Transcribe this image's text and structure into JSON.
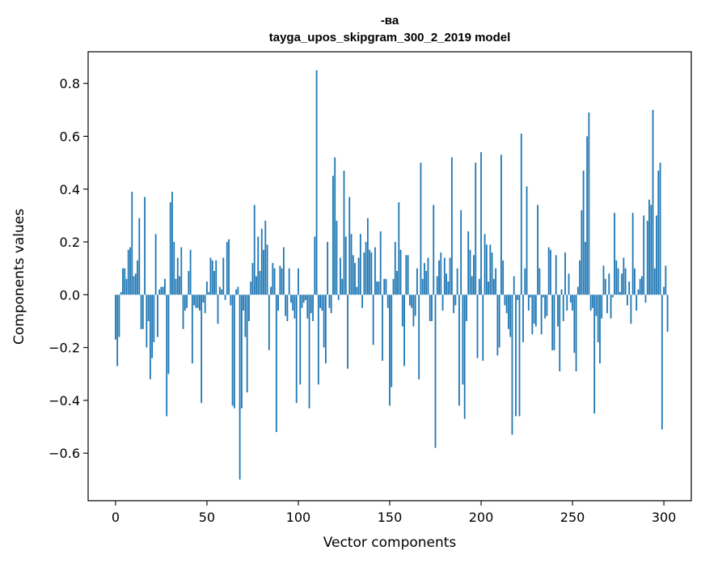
{
  "chart_data": {
    "type": "bar",
    "title_line1": "-ва",
    "title_line2": "tayga_upos_skipgram_300_2_2019 model",
    "xlabel": "Vector components",
    "ylabel": "Components values",
    "xlim": [
      -15,
      315
    ],
    "ylim": [
      -0.78,
      0.92
    ],
    "xticks": [
      0,
      50,
      100,
      150,
      200,
      250,
      300
    ],
    "yticks": [
      -0.6,
      -0.4,
      -0.2,
      0.0,
      0.2,
      0.4,
      0.6,
      0.8
    ],
    "ytick_labels": [
      "−0.6",
      "−0.4",
      "−0.2",
      "0.0",
      "0.2",
      "0.4",
      "0.6",
      "0.8"
    ],
    "bar_color": "#1f77b4",
    "values": [
      -0.17,
      -0.27,
      -0.16,
      0.01,
      0.1,
      0.1,
      0.06,
      0.17,
      0.18,
      0.39,
      0.07,
      0.08,
      0.13,
      0.29,
      -0.13,
      -0.13,
      0.37,
      -0.2,
      -0.1,
      -0.32,
      -0.24,
      -0.18,
      0.23,
      -0.16,
      0.02,
      0.03,
      0.03,
      0.06,
      -0.46,
      -0.3,
      0.35,
      0.39,
      0.2,
      0.06,
      0.14,
      0.07,
      0.18,
      -0.13,
      -0.06,
      -0.05,
      0.09,
      0.17,
      -0.26,
      -0.04,
      -0.05,
      -0.05,
      -0.06,
      -0.41,
      -0.03,
      -0.07,
      0.05,
      0.01,
      0.14,
      0.13,
      0.09,
      0.13,
      -0.11,
      0.03,
      0.02,
      0.14,
      -0.02,
      0.2,
      0.21,
      -0.04,
      -0.42,
      -0.43,
      0.02,
      0.03,
      -0.7,
      -0.43,
      -0.06,
      -0.16,
      -0.37,
      -0.1,
      0.05,
      0.12,
      0.34,
      0.07,
      0.22,
      0.09,
      0.25,
      0.17,
      0.28,
      0.19,
      -0.21,
      0.03,
      0.12,
      0.1,
      -0.52,
      -0.06,
      0.11,
      0.1,
      0.18,
      -0.08,
      -0.1,
      0.1,
      -0.03,
      -0.06,
      -0.09,
      -0.41,
      0.1,
      -0.34,
      -0.05,
      -0.03,
      -0.02,
      -0.09,
      -0.43,
      -0.07,
      -0.1,
      0.22,
      0.85,
      -0.34,
      -0.05,
      -0.06,
      -0.2,
      -0.26,
      0.2,
      -0.05,
      -0.07,
      0.45,
      0.52,
      0.28,
      -0.02,
      0.14,
      0.06,
      0.47,
      0.22,
      -0.28,
      0.37,
      0.23,
      0.15,
      0.12,
      0.03,
      0.14,
      0.23,
      -0.05,
      0.16,
      0.2,
      0.29,
      0.17,
      0.16,
      -0.19,
      0.18,
      0.05,
      0.05,
      0.24,
      -0.25,
      0.06,
      0.06,
      -0.05,
      -0.42,
      -0.35,
      0.06,
      0.2,
      0.09,
      0.35,
      0.17,
      -0.12,
      -0.27,
      0.15,
      0.15,
      -0.04,
      -0.05,
      -0.12,
      -0.08,
      0.1,
      -0.32,
      0.5,
      0.06,
      0.12,
      0.09,
      0.14,
      -0.1,
      -0.1,
      0.34,
      -0.58,
      0.07,
      0.13,
      0.16,
      -0.06,
      0.14,
      0.08,
      0.05,
      0.14,
      0.52,
      -0.07,
      -0.04,
      0.1,
      -0.42,
      0.32,
      -0.34,
      -0.47,
      -0.1,
      0.24,
      0.17,
      0.07,
      0.15,
      0.5,
      -0.24,
      0.06,
      0.54,
      -0.25,
      0.23,
      0.19,
      0.05,
      0.19,
      0.16,
      0.06,
      0.1,
      -0.23,
      -0.2,
      0.53,
      0.13,
      -0.04,
      -0.07,
      -0.13,
      -0.16,
      -0.53,
      0.07,
      -0.46,
      -0.02,
      -0.46,
      0.61,
      -0.18,
      0.1,
      0.41,
      -0.06,
      -0.01,
      -0.15,
      -0.11,
      -0.12,
      0.34,
      0.1,
      -0.15,
      -0.01,
      -0.09,
      -0.08,
      0.18,
      0.17,
      -0.21,
      -0.21,
      0.15,
      -0.12,
      -0.29,
      0.02,
      -0.1,
      0.16,
      -0.06,
      0.08,
      -0.03,
      -0.06,
      -0.22,
      -0.29,
      0.03,
      0.13,
      0.32,
      0.47,
      0.2,
      0.6,
      0.69,
      -0.06,
      -0.05,
      -0.45,
      -0.08,
      -0.18,
      -0.26,
      -0.09,
      0.11,
      0.06,
      -0.07,
      0.08,
      -0.09,
      -0.01,
      0.31,
      0.13,
      0.1,
      0.01,
      0.08,
      0.14,
      0.1,
      -0.04,
      0.05,
      -0.11,
      0.31,
      0.1,
      -0.06,
      0.02,
      0.06,
      0.07,
      0.3,
      -0.03,
      0.28,
      0.36,
      0.34,
      0.7,
      0.1,
      0.3,
      0.47,
      0.5,
      -0.51,
      0.03,
      0.11,
      -0.14
    ]
  }
}
